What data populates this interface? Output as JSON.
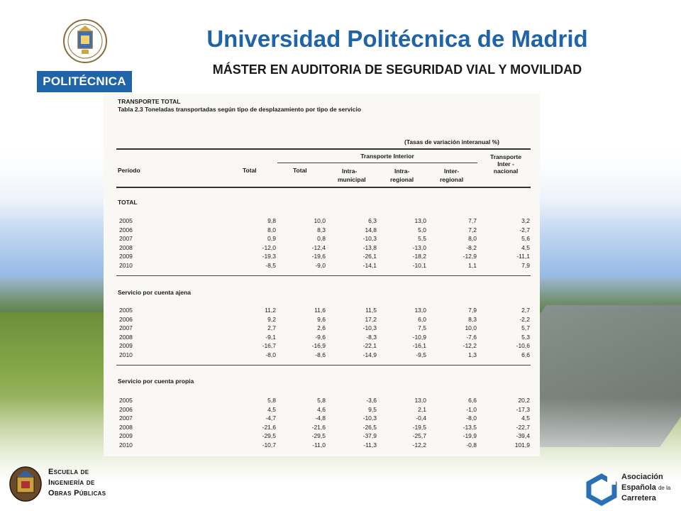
{
  "header": {
    "university": "Universidad Politécnica de Madrid",
    "program": "MÁSTER EN AUDITORIA DE SEGURIDAD VIAL Y MOVILIDAD",
    "logo_label": "POLITÉCNICA"
  },
  "table": {
    "section_title": "TRANSPORTE TOTAL",
    "caption": "Tabla 2.3  Toneladas transportadas según tipo de desplazamiento por tipo de servicio",
    "unit_note": "(Tasas de variación interanual %)",
    "headers": {
      "periodo": "Período",
      "total": "Total",
      "transporte_interior": "Transporte Interior",
      "interior_total": "Total",
      "intra_municipal_1": "Intra-",
      "intra_municipal_2": "municipal",
      "intra_regional_1": "Intra-",
      "intra_regional_2": "regional",
      "inter_regional_1": "Inter-",
      "inter_regional_2": "regional",
      "internacional_1": "Transporte",
      "internacional_2": "Inter -",
      "internacional_3": "nacional"
    },
    "sections": [
      {
        "title": "TOTAL",
        "rows": [
          [
            "2005",
            "9,8",
            "10,0",
            "6,3",
            "13,0",
            "7,7",
            "3,2"
          ],
          [
            "2006",
            "8,0",
            "8,3",
            "14,8",
            "5,0",
            "7,2",
            "-2,7"
          ],
          [
            "2007",
            "0,9",
            "0,8",
            "-10,3",
            "5,5",
            "8,0",
            "5,6"
          ],
          [
            "2008",
            "-12,0",
            "-12,4",
            "-13,8",
            "-13,0",
            "-8,2",
            "4,5"
          ],
          [
            "2009",
            "-19,3",
            "-19,6",
            "-26,1",
            "-18,2",
            "-12,9",
            "-11,1"
          ],
          [
            "2010",
            "-8,5",
            "-9,0",
            "-14,1",
            "-10,1",
            "1,1",
            "7,9"
          ]
        ]
      },
      {
        "title": "Servicio por cuenta ajena",
        "rows": [
          [
            "2005",
            "11,2",
            "11,6",
            "11,5",
            "13,0",
            "7,9",
            "2,7"
          ],
          [
            "2006",
            "9,2",
            "9,6",
            "17,2",
            "6,0",
            "8,3",
            "-2,2"
          ],
          [
            "2007",
            "2,7",
            "2,6",
            "-10,3",
            "7,5",
            "10,0",
            "5,7"
          ],
          [
            "2008",
            "-9,1",
            "-9,6",
            "-8,3",
            "-10,9",
            "-7,6",
            "5,3"
          ],
          [
            "2009",
            "-16,7",
            "-16,9",
            "-22,1",
            "-16,1",
            "-12,2",
            "-10,6"
          ],
          [
            "2010",
            "-8,0",
            "-8,6",
            "-14,9",
            "-9,5",
            "1,3",
            "6,6"
          ]
        ]
      },
      {
        "title": "Servicio por cuenta propia",
        "rows": [
          [
            "2005",
            "5,8",
            "5,8",
            "-3,6",
            "13,0",
            "6,6",
            "20,2"
          ],
          [
            "2006",
            "4,5",
            "4,6",
            "9,5",
            "2,1",
            "-1,0",
            "-17,3"
          ],
          [
            "2007",
            "-4,7",
            "-4,8",
            "-10,3",
            "-0,4",
            "-8,0",
            "4,5"
          ],
          [
            "2008",
            "-21,6",
            "-21,6",
            "-26,5",
            "-19,5",
            "-13,5",
            "-22,7"
          ],
          [
            "2009",
            "-29,5",
            "-29,5",
            "-37,9",
            "-25,7",
            "-19,9",
            "-39,4"
          ],
          [
            "2010",
            "-10,7",
            "-11,0",
            "-11,3",
            "-12,2",
            "-0,8",
            "101,9"
          ]
        ]
      }
    ]
  },
  "footer": {
    "eicp_line1": "Escuela de",
    "eicp_line2": "Ingeniería de",
    "eicp_line3": "Obras Públicas",
    "aec_line1": "Asociación",
    "aec_line2": "Española",
    "aec_line2_small": "de la",
    "aec_line3": "Carretera"
  },
  "colors": {
    "brand_blue": "#1f63a8"
  }
}
